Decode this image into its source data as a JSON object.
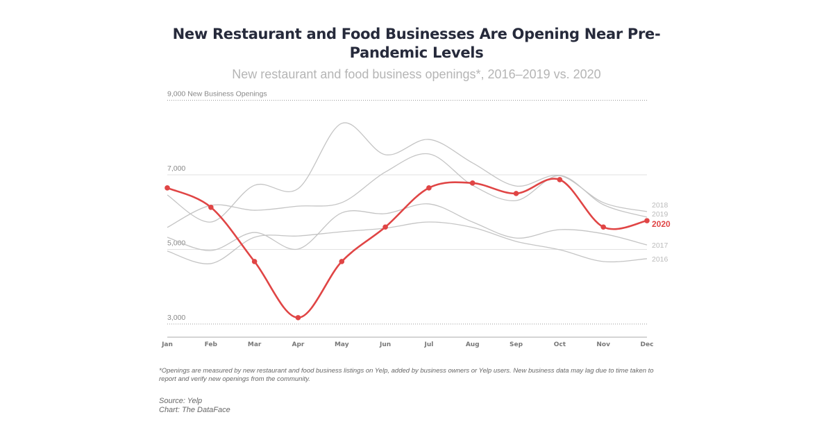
{
  "title": "New Restaurant and Food Businesses Are Opening Near Pre-Pandemic Levels",
  "subtitle": "New restaurant and food business openings*, 2016–2019 vs. 2020",
  "footnote": "*Openings are measured by new restaurant and food business listings on Yelp, added by business owners or Yelp users. New business data may lag due to time taken to report and verify new openings from the community.",
  "source": "Source: Yelp",
  "credit": "Chart: The DataFace",
  "chart_data": {
    "type": "line",
    "title": "New Restaurant and Food Businesses Are Opening Near Pre-Pandemic Levels",
    "ylabel": "New Business Openings",
    "ylim": [
      2000,
      9000
    ],
    "yticks": [
      {
        "value": 9000,
        "label": "9,000 New Business Openings"
      },
      {
        "value": 7000,
        "label": "7,000"
      },
      {
        "value": 5000,
        "label": "5,000"
      },
      {
        "value": 3000,
        "label": "3,000"
      }
    ],
    "categories": [
      "Jan",
      "Feb",
      "Mar",
      "Apr",
      "May",
      "Jun",
      "Jul",
      "Aug",
      "Sep",
      "Oct",
      "Nov",
      "Dec"
    ],
    "grid": true,
    "legend": "direct labels at right end",
    "series": [
      {
        "name": "2016",
        "color": "#c4c4c4",
        "values": [
          4955,
          4620,
          5325,
          5360,
          5475,
          5570,
          5735,
          5590,
          5215,
          4990,
          4675,
          4750
        ]
      },
      {
        "name": "2017",
        "color": "#c4c4c4",
        "values": [
          5325,
          4970,
          5455,
          5010,
          5980,
          5960,
          6220,
          5735,
          5305,
          5530,
          5420,
          5120
        ]
      },
      {
        "name": "2018",
        "color": "#c4c4c4",
        "values": [
          6460,
          5735,
          6720,
          6630,
          8380,
          7540,
          7950,
          7320,
          6700,
          6980,
          6255,
          6015
        ]
      },
      {
        "name": "2019",
        "color": "#c4c4c4",
        "values": [
          5590,
          6180,
          6050,
          6160,
          6255,
          7075,
          7560,
          6720,
          6310,
          6980,
          6200,
          5865
        ]
      },
      {
        "name": "2020",
        "color": "#e04545",
        "values": [
          6650,
          6130,
          4675,
          3170,
          4675,
          5600,
          6650,
          6780,
          6500,
          6870,
          5600,
          5770
        ]
      }
    ]
  }
}
